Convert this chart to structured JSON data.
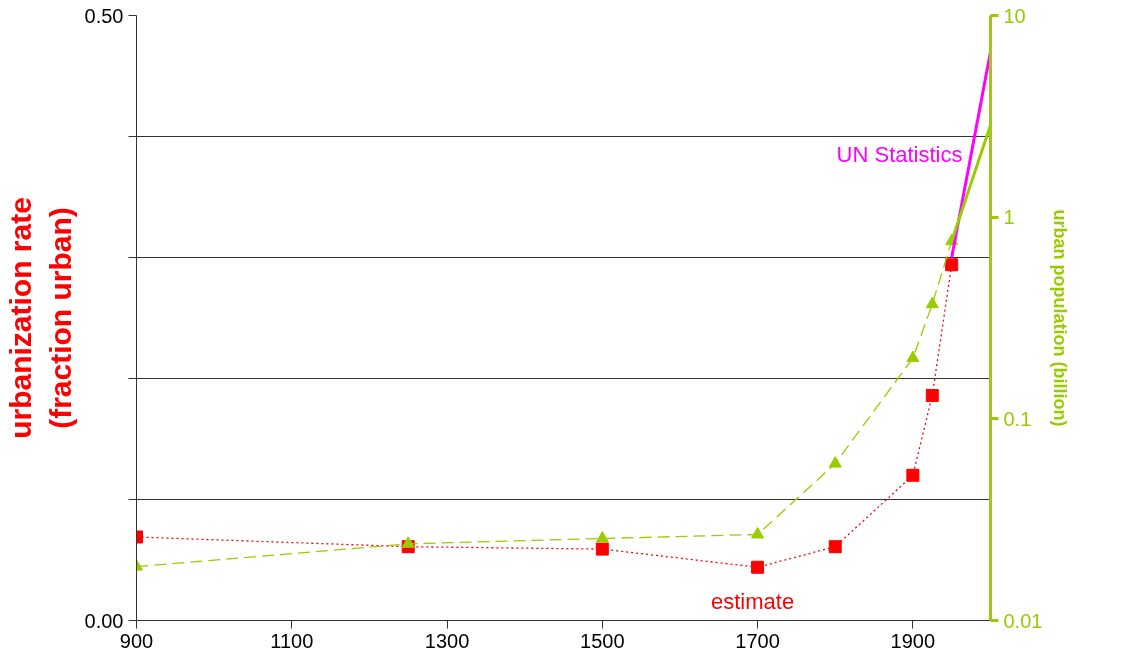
{
  "chart_data": {
    "type": "line",
    "ylabel": "urbanization rate\n(fraction urban)",
    "y2label": "urban population (billion)",
    "xlim": [
      900,
      2000
    ],
    "xticks": [
      900,
      1100,
      1300,
      1500,
      1700,
      1900
    ],
    "ylim": [
      0,
      0.5
    ],
    "yticks": [
      {
        "value": 0,
        "label": "0.00"
      },
      {
        "value": 0.1,
        "label": null
      },
      {
        "value": 0.2,
        "label": null
      },
      {
        "value": 0.3,
        "label": null
      },
      {
        "value": 0.4,
        "label": null
      },
      {
        "value": 0.5,
        "label": "0.50"
      }
    ],
    "y2lim": [
      0.01,
      10
    ],
    "y2ticks": [
      0.01,
      0.1,
      1,
      10
    ],
    "log": "y2",
    "grid": "y",
    "series": [
      {
        "name": "estimate",
        "color": "#ff0000",
        "marker": "square",
        "line_style": "dotted",
        "x": [
          900,
          1250,
          1500,
          1700,
          1800,
          1900,
          1925,
          1950
        ],
        "values": [
          0.069,
          0.061,
          0.059,
          0.044,
          0.061,
          0.12,
          0.186,
          0.294
        ]
      },
      {
        "color": "#99cc00",
        "marker": "triangle",
        "line_style": "dashed",
        "axis": "y2",
        "x": [
          900,
          1250,
          1500,
          1700,
          1800,
          1900,
          1925,
          1950
        ],
        "values": [
          0.0185,
          0.024,
          0.0255,
          0.0267,
          0.06,
          0.2,
          0.37,
          0.76
        ]
      },
      {
        "name": "UN Statistics",
        "color": "#ff00ff",
        "marker": "none",
        "line_style": "solid",
        "x": [
          1950,
          2000
        ],
        "values": [
          0.3,
          0.47
        ]
      },
      {
        "color": "#99cc00",
        "marker": "none",
        "line_style": "solid",
        "axis": "y2",
        "x": [
          1950,
          2000
        ],
        "values": [
          0.76,
          2.86
        ]
      }
    ]
  }
}
